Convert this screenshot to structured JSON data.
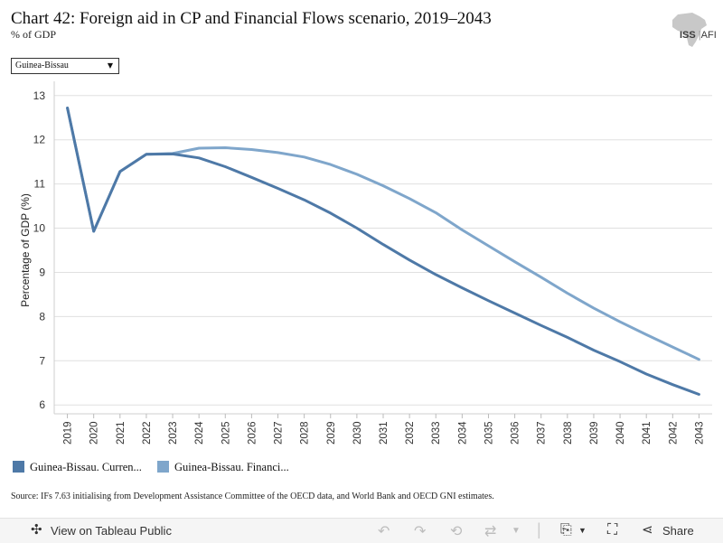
{
  "header": {
    "title": "Chart 42: Foreign aid in CP and Financial Flows scenario, 2019–2043",
    "subtitle": "% of GDP"
  },
  "logo": {
    "text_main": "ISS",
    "text_sub": "AFI"
  },
  "filter": {
    "selected": "Guinea-Bissau"
  },
  "chart_data": {
    "type": "line",
    "title": "Chart 42: Foreign aid in CP and Financial Flows scenario, 2019–2043",
    "subtitle": "% of GDP",
    "xlabel": "",
    "ylabel": "Percentage of GDP (%)",
    "x": [
      "2019",
      "2020",
      "2021",
      "2022",
      "2023",
      "2024",
      "2025",
      "2026",
      "2027",
      "2028",
      "2029",
      "2030",
      "2031",
      "2032",
      "2033",
      "2034",
      "2035",
      "2036",
      "2037",
      "2038",
      "2039",
      "2040",
      "2041",
      "2042",
      "2043"
    ],
    "y_ticks": [
      6,
      7,
      8,
      9,
      10,
      11,
      12,
      13
    ],
    "ylim": [
      5.8,
      13.2
    ],
    "grid": true,
    "legend_position": "bottom-left",
    "series": [
      {
        "name": "Guinea-Bissau. Curren...",
        "color": "#4e79a7",
        "values": [
          12.72,
          9.93,
          11.28,
          11.67,
          11.68,
          11.59,
          11.39,
          11.15,
          10.9,
          10.64,
          10.34,
          10.0,
          9.63,
          9.28,
          8.95,
          8.65,
          8.36,
          8.08,
          7.8,
          7.53,
          7.24,
          6.98,
          6.7,
          6.46,
          6.24
        ]
      },
      {
        "name": "Guinea-Bissau. Financi...",
        "color": "#7fa6cb",
        "values": [
          12.72,
          9.93,
          11.28,
          11.67,
          11.69,
          11.81,
          11.82,
          11.78,
          11.71,
          11.61,
          11.44,
          11.22,
          10.96,
          10.67,
          10.35,
          9.96,
          9.6,
          9.24,
          8.89,
          8.53,
          8.19,
          7.88,
          7.59,
          7.31,
          7.03
        ]
      }
    ]
  },
  "legend": {
    "items": [
      {
        "label": "Guinea-Bissau. Curren...",
        "color": "#4e79a7"
      },
      {
        "label": "Guinea-Bissau. Financi...",
        "color": "#7fa6cb"
      }
    ]
  },
  "source": "Source: IFs 7.63 initialising from Development Assistance Committee of the OECD data, and World Bank and OECD GNI estimates.",
  "toolbar": {
    "view_label": "View on Tableau Public",
    "share_label": "Share"
  }
}
